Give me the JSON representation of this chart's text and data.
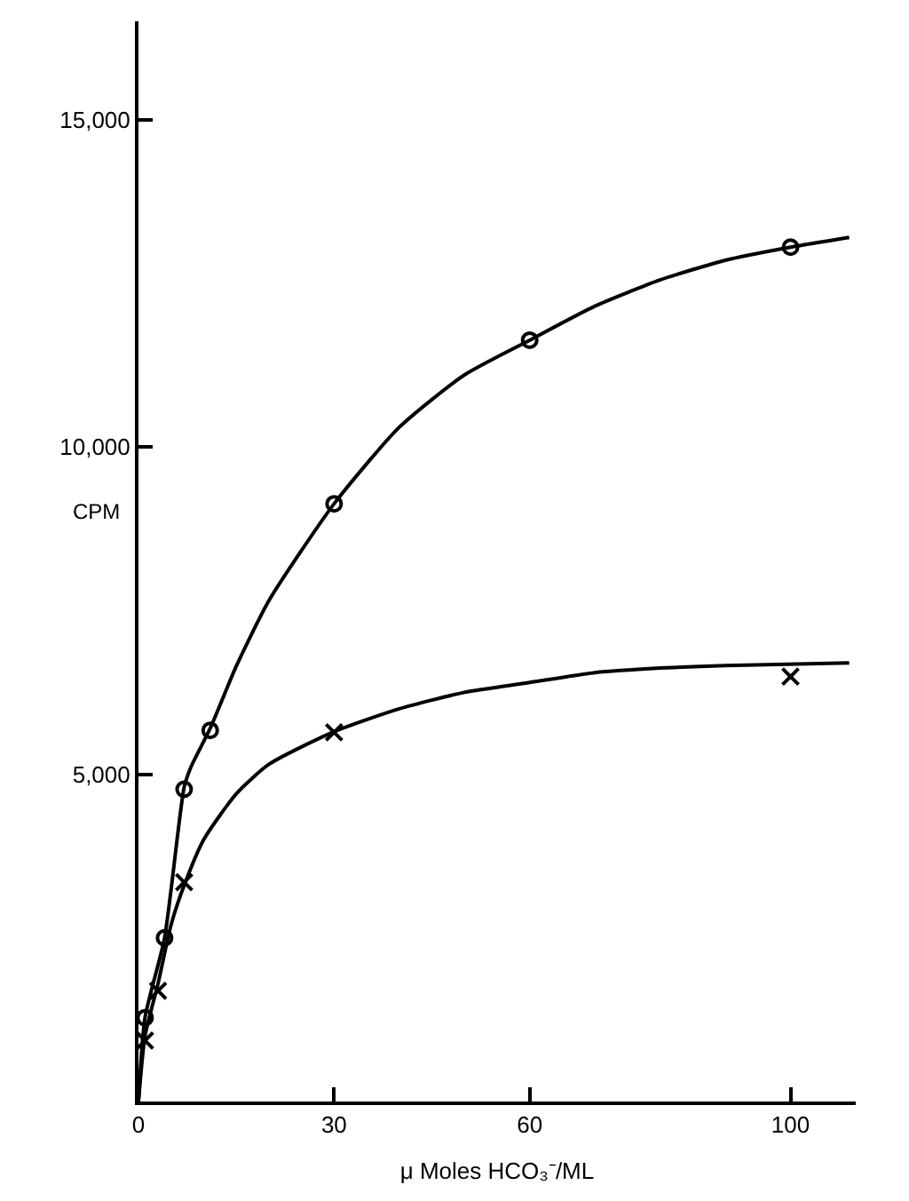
{
  "chart_data": {
    "type": "scatter",
    "xlabel": "μ Moles HCO₃⁻/ML",
    "ylabel": "CPM",
    "xlim": [
      0,
      110
    ],
    "ylim": [
      0,
      16500
    ],
    "xticks": [
      0,
      30,
      60,
      100
    ],
    "yticks": [
      {
        "value": 5000,
        "label": "5,000"
      },
      {
        "value": 10000,
        "label": "10,000"
      },
      {
        "value": 15000,
        "label": "15,000"
      }
    ],
    "series": [
      {
        "marker": "circle",
        "color": "#000000",
        "x": [
          1,
          4,
          7,
          11,
          30,
          60,
          100
        ],
        "values": [
          1280,
          2500,
          4770,
          5670,
          9130,
          11630,
          13050
        ]
      },
      {
        "marker": "cross",
        "color": "#000000",
        "x": [
          1,
          3,
          7,
          30,
          100
        ],
        "values": [
          930,
          1690,
          3350,
          5640,
          6490
        ]
      },
      {
        "type": "line",
        "marker": "none",
        "line_style": "solid",
        "color": "#000000",
        "x": [
          0,
          1,
          4,
          7,
          8,
          11,
          15,
          20,
          30,
          40,
          50,
          60,
          70,
          80,
          90,
          100,
          109
        ],
        "values": [
          0,
          1280,
          2500,
          4800,
          5100,
          5700,
          6650,
          7650,
          9130,
          10300,
          11100,
          11630,
          12150,
          12550,
          12850,
          13050,
          13200
        ]
      },
      {
        "type": "line",
        "marker": "none",
        "line_style": "solid",
        "color": "#000000",
        "x": [
          0,
          1,
          3,
          5,
          7,
          10,
          15,
          20,
          30,
          40,
          50,
          60,
          70,
          80,
          90,
          109
        ],
        "values": [
          0,
          1000,
          1800,
          2700,
          3300,
          4000,
          4700,
          5150,
          5650,
          6000,
          6250,
          6400,
          6550,
          6620,
          6660,
          6700
        ]
      }
    ]
  }
}
